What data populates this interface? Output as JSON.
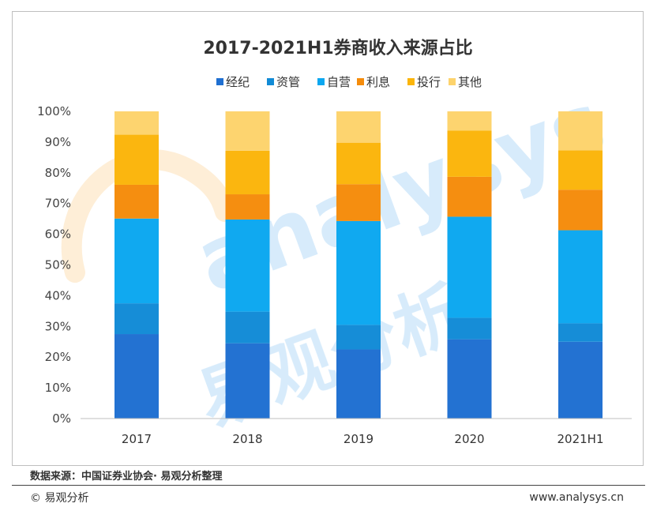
{
  "colors": {
    "经纪": "#1F6FD1",
    "资管": "#118BD6",
    "自营": "#0BA7F0",
    "利息": "#F58C0B",
    "投行": "#FBB50A",
    "其他": "#FDD36C"
  },
  "chart_data": {
    "type": "bar",
    "stacked": true,
    "title": "2017-2021H1券商收入来源占比",
    "legend_position": "top",
    "categories": [
      "2017",
      "2018",
      "2019",
      "2020",
      "2021H1"
    ],
    "y_ticks": [
      "0%",
      "10%",
      "20%",
      "30%",
      "40%",
      "50%",
      "60%",
      "70%",
      "80%",
      "90%",
      "100%"
    ],
    "ylim": [
      0,
      100
    ],
    "series": [
      {
        "name": "经纪",
        "values": [
          27.5,
          24.5,
          22.5,
          25.8,
          25.0
        ]
      },
      {
        "name": "资管",
        "values": [
          10.0,
          10.3,
          8.0,
          7.0,
          6.0
        ]
      },
      {
        "name": "自营",
        "values": [
          27.6,
          30.0,
          33.8,
          32.9,
          30.3
        ]
      },
      {
        "name": "利息",
        "values": [
          11.0,
          8.2,
          12.0,
          13.0,
          13.2
        ]
      },
      {
        "name": "投行",
        "values": [
          16.3,
          14.2,
          13.5,
          15.0,
          12.8
        ]
      },
      {
        "name": "其他",
        "values": [
          7.6,
          12.8,
          10.2,
          6.3,
          12.7
        ]
      }
    ]
  },
  "watermark": {
    "brand_en": "analysys",
    "brand_cn": "易观分析"
  },
  "footer": {
    "source": "数据来源：中国证券业协会· 易观分析整理",
    "copyright": "© 易观分析",
    "website": "www.analysys.cn"
  }
}
